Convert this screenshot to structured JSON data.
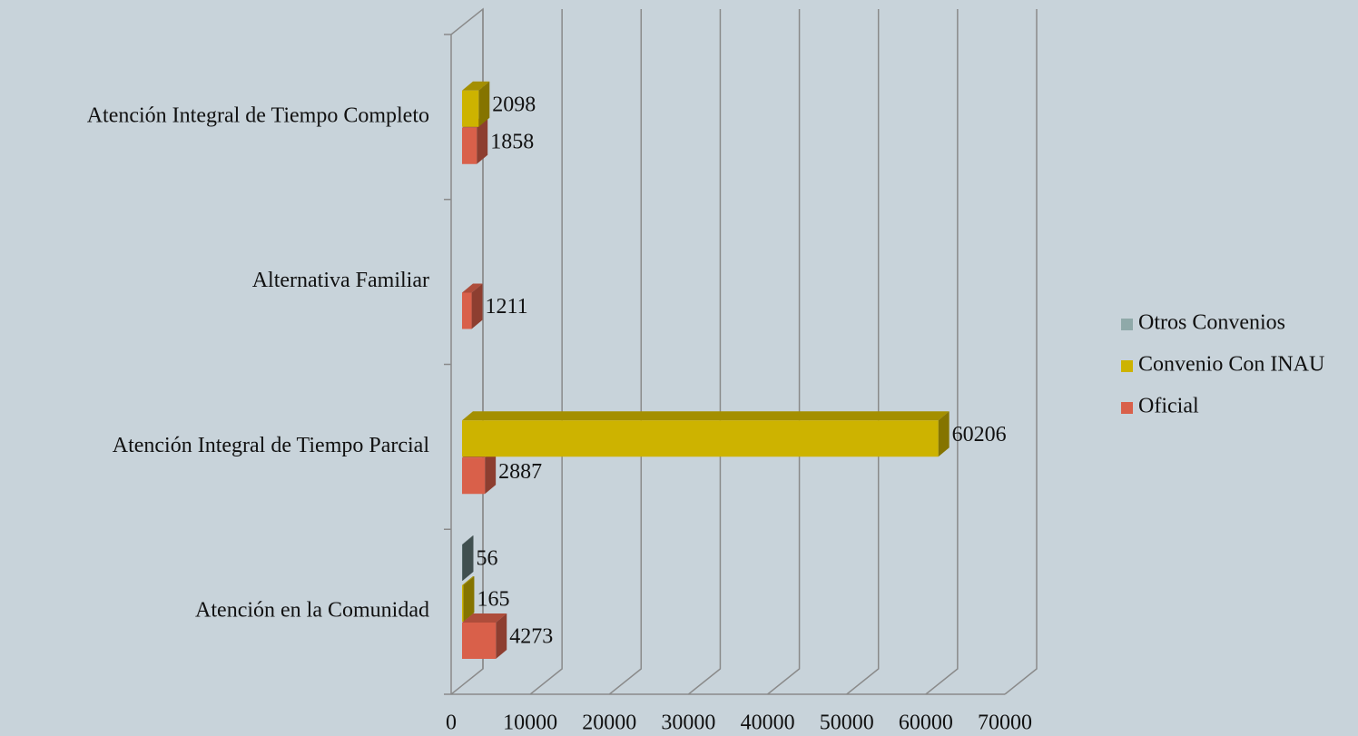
{
  "chart_data": {
    "type": "bar3d_horizontal",
    "categories": [
      "Atención en la Comunidad",
      "Atención Integral de Tiempo Parcial",
      "Alternativa Familiar",
      "Atención Integral de Tiempo Completo"
    ],
    "series": [
      {
        "name": "Oficial",
        "color": "#d9604a",
        "values": [
          4273,
          2887,
          1211,
          1858
        ]
      },
      {
        "name": "Convenio Con INAU",
        "color": "#cdb300",
        "values": [
          165,
          60206,
          null,
          2098
        ]
      },
      {
        "name": "Otros Convenios",
        "color": "#8fa9a9",
        "values": [
          56,
          null,
          null,
          null
        ]
      }
    ],
    "xlim": [
      0,
      70000
    ],
    "xticks": [
      0,
      10000,
      20000,
      30000,
      40000,
      50000,
      60000,
      70000
    ],
    "grid": true,
    "legend": "right"
  }
}
